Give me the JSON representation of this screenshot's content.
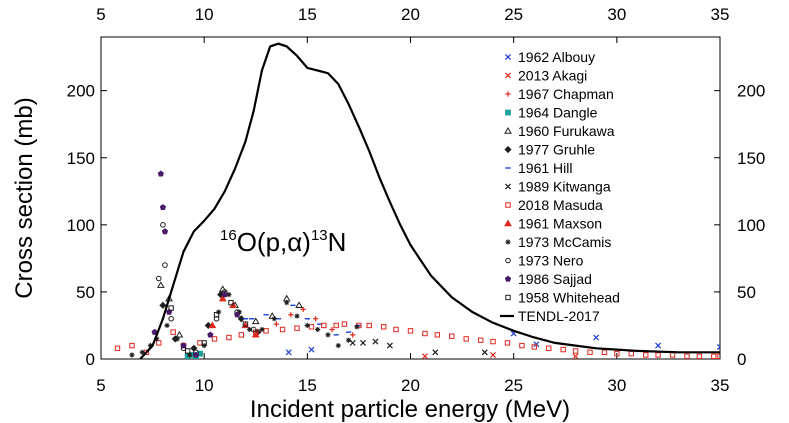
{
  "chart_data": {
    "type": "scatter",
    "title": "",
    "annotation": {
      "mass_a": "16",
      "element_a": "O",
      "reaction": "(p,",
      "alpha": "α",
      "close": ")",
      "mass_b": "13",
      "element_b": "N"
    },
    "xlabel": "Incident particle energy (MeV)",
    "ylabel": "Cross section (mb)",
    "xlim": [
      5,
      35
    ],
    "ylim": [
      0,
      240
    ],
    "xticks": [
      5,
      10,
      15,
      20,
      25,
      30,
      35
    ],
    "xtick_labels": [
      "5",
      "10",
      "15",
      "20",
      "25",
      "30",
      "35"
    ],
    "yticks": [
      0,
      50,
      100,
      150,
      200
    ],
    "ytick_labels": [
      "0",
      "50",
      "100",
      "150",
      "200"
    ],
    "legend_position": "top-right",
    "series": [
      {
        "name": "1962 Albouy",
        "color": "#1f3fd0",
        "marker": "x",
        "points": [
          [
            14.1,
            5
          ],
          [
            15.2,
            7
          ],
          [
            25.0,
            19
          ],
          [
            26.1,
            11
          ],
          [
            29.0,
            16
          ],
          [
            32.0,
            10
          ],
          [
            35.0,
            9
          ]
        ]
      },
      {
        "name": "2013 Akagi",
        "color": "#e0281e",
        "marker": "x",
        "points": [
          [
            20.7,
            2
          ],
          [
            24.0,
            3
          ],
          [
            28.0,
            2
          ]
        ]
      },
      {
        "name": "1967 Chapman",
        "color": "#e0281e",
        "marker": "plus",
        "points": [
          [
            13.5,
            26
          ],
          [
            14.2,
            33
          ],
          [
            14.8,
            37
          ],
          [
            15.4,
            30
          ],
          [
            16.2,
            22
          ],
          [
            17.2,
            18
          ]
        ]
      },
      {
        "name": "1964 Dangle",
        "color": "#1aa39a",
        "marker": "square-filled",
        "points": [
          [
            9.2,
            2
          ],
          [
            9.4,
            3
          ],
          [
            9.6,
            2
          ],
          [
            9.8,
            4
          ]
        ]
      },
      {
        "name": "1960 Furukawa",
        "color": "#1f1f1f",
        "marker": "triangle",
        "points": [
          [
            7.9,
            55
          ],
          [
            8.3,
            45
          ],
          [
            8.8,
            18
          ],
          [
            10.9,
            52
          ],
          [
            11.5,
            40
          ],
          [
            12.5,
            28
          ],
          [
            13.3,
            32
          ],
          [
            14.0,
            45
          ],
          [
            14.6,
            40
          ]
        ]
      },
      {
        "name": "1977 Gruhle",
        "color": "#1f1f1f",
        "marker": "diamond",
        "points": [
          [
            8.0,
            40
          ],
          [
            8.6,
            15
          ],
          [
            9.5,
            8
          ],
          [
            10.2,
            25
          ],
          [
            10.8,
            48
          ],
          [
            11.8,
            30
          ],
          [
            12.6,
            20
          ]
        ]
      },
      {
        "name": "1961 Hill",
        "color": "#1f3fd0",
        "marker": "dash",
        "points": [
          [
            12.0,
            30
          ],
          [
            12.3,
            30
          ],
          [
            13.0,
            33
          ],
          [
            13.6,
            30
          ],
          [
            14.3,
            40
          ],
          [
            15.0,
            30
          ],
          [
            15.6,
            26
          ],
          [
            16.4,
            18
          ],
          [
            17.0,
            20
          ],
          [
            17.5,
            25
          ]
        ]
      },
      {
        "name": "1989 Kitwanga",
        "color": "#1f1f1f",
        "marker": "x",
        "points": [
          [
            17.2,
            12
          ],
          [
            17.7,
            12
          ],
          [
            18.3,
            13
          ],
          [
            19.0,
            10
          ],
          [
            21.2,
            5
          ],
          [
            23.6,
            5
          ]
        ]
      },
      {
        "name": "2018 Masuda",
        "color": "#e0281e",
        "marker": "square",
        "points": [
          [
            5.8,
            8
          ],
          [
            6.5,
            10
          ],
          [
            7.2,
            5
          ],
          [
            7.8,
            12
          ],
          [
            8.5,
            20
          ],
          [
            9.0,
            10
          ],
          [
            9.8,
            12
          ],
          [
            10.5,
            15
          ],
          [
            11.2,
            16
          ],
          [
            11.8,
            18
          ],
          [
            12.5,
            20
          ],
          [
            13.0,
            21
          ],
          [
            13.8,
            22
          ],
          [
            14.5,
            23
          ],
          [
            15.2,
            24
          ],
          [
            15.8,
            25
          ],
          [
            16.4,
            25
          ],
          [
            16.8,
            26
          ],
          [
            17.5,
            25
          ],
          [
            18.0,
            25
          ],
          [
            18.7,
            24
          ],
          [
            19.3,
            22
          ],
          [
            20.0,
            21
          ],
          [
            20.7,
            19
          ],
          [
            21.3,
            18
          ],
          [
            22.0,
            17
          ],
          [
            22.7,
            15
          ],
          [
            23.4,
            14
          ],
          [
            24.0,
            13
          ],
          [
            24.7,
            12
          ],
          [
            25.4,
            10
          ],
          [
            26.0,
            9
          ],
          [
            26.7,
            8
          ],
          [
            27.4,
            7
          ],
          [
            28.0,
            6
          ],
          [
            28.7,
            5
          ],
          [
            29.4,
            5
          ],
          [
            30.0,
            4
          ],
          [
            30.7,
            4
          ],
          [
            31.4,
            3
          ],
          [
            32.0,
            3
          ],
          [
            32.7,
            3
          ],
          [
            33.4,
            2
          ],
          [
            34.0,
            2
          ],
          [
            34.7,
            2
          ],
          [
            35.0,
            2
          ]
        ]
      },
      {
        "name": "1961 Maxson",
        "color": "#e0281e",
        "marker": "triangle-filled",
        "points": [
          [
            10.4,
            25
          ],
          [
            10.9,
            45
          ],
          [
            11.4,
            40
          ],
          [
            12.0,
            25
          ],
          [
            12.5,
            18
          ]
        ]
      },
      {
        "name": "1973 McCamis",
        "color": "#1f1f1f",
        "marker": "star",
        "points": [
          [
            6.5,
            3
          ],
          [
            7.0,
            5
          ],
          [
            7.4,
            10
          ],
          [
            7.7,
            15
          ],
          [
            8.2,
            25
          ],
          [
            8.7,
            15
          ],
          [
            9.3,
            3
          ],
          [
            10.0,
            10
          ],
          [
            10.7,
            35
          ],
          [
            11.2,
            48
          ],
          [
            11.7,
            35
          ],
          [
            12.2,
            22
          ],
          [
            12.8,
            22
          ],
          [
            13.4,
            30
          ],
          [
            14.0,
            42
          ],
          [
            14.5,
            32
          ],
          [
            15.0,
            25
          ],
          [
            15.5,
            22
          ],
          [
            16.0,
            18
          ],
          [
            16.5,
            10
          ],
          [
            17.0,
            14
          ],
          [
            17.4,
            24
          ]
        ]
      },
      {
        "name": "1973 Nero",
        "color": "#1f1f1f",
        "marker": "circle",
        "points": [
          [
            7.8,
            60
          ],
          [
            8.0,
            100
          ],
          [
            8.1,
            70
          ],
          [
            8.4,
            30
          ],
          [
            9.0,
            8
          ],
          [
            9.6,
            5
          ],
          [
            10.6,
            30
          ],
          [
            11.0,
            50
          ],
          [
            11.6,
            35
          ],
          [
            12.4,
            22
          ]
        ]
      },
      {
        "name": "1986 Sajjad",
        "color": "#4a1a6a",
        "marker": "pentagon-filled",
        "points": [
          [
            7.6,
            20
          ],
          [
            7.9,
            138
          ],
          [
            8.0,
            113
          ],
          [
            8.1,
            95
          ],
          [
            8.3,
            35
          ],
          [
            9.0,
            10
          ],
          [
            9.6,
            3
          ],
          [
            10.3,
            18
          ],
          [
            11.0,
            48
          ],
          [
            11.6,
            33
          ]
        ]
      },
      {
        "name": "1958 Whitehead",
        "color": "#1f1f1f",
        "marker": "square",
        "points": [
          [
            8.4,
            38
          ],
          [
            9.2,
            6
          ],
          [
            10.0,
            12
          ],
          [
            10.6,
            33
          ],
          [
            11.3,
            42
          ],
          [
            12.0,
            26
          ]
        ]
      },
      {
        "name": "TENDL-2017",
        "color": "#000000",
        "marker": "line",
        "points": [
          [
            6.9,
            0
          ],
          [
            7.5,
            10
          ],
          [
            8.0,
            30
          ],
          [
            8.5,
            55
          ],
          [
            9.0,
            80
          ],
          [
            9.5,
            95
          ],
          [
            10.0,
            103
          ],
          [
            10.5,
            112
          ],
          [
            11.0,
            125
          ],
          [
            11.5,
            142
          ],
          [
            12.0,
            162
          ],
          [
            12.4,
            185
          ],
          [
            12.8,
            215
          ],
          [
            13.2,
            233
          ],
          [
            13.6,
            235
          ],
          [
            14.0,
            233
          ],
          [
            14.5,
            226
          ],
          [
            15.0,
            217
          ],
          [
            15.5,
            215
          ],
          [
            16.0,
            213
          ],
          [
            16.5,
            205
          ],
          [
            17.0,
            190
          ],
          [
            17.5,
            173
          ],
          [
            18.0,
            155
          ],
          [
            18.5,
            135
          ],
          [
            19.0,
            117
          ],
          [
            19.5,
            100
          ],
          [
            20.0,
            85
          ],
          [
            21.0,
            62
          ],
          [
            22.0,
            46
          ],
          [
            23.0,
            35
          ],
          [
            24.0,
            27
          ],
          [
            25.0,
            21
          ],
          [
            26.0,
            16
          ],
          [
            27.0,
            12
          ],
          [
            28.0,
            10
          ],
          [
            29.0,
            8
          ],
          [
            30.0,
            7
          ],
          [
            31.0,
            6
          ],
          [
            32.0,
            5.5
          ],
          [
            33.0,
            5
          ],
          [
            34.0,
            5
          ],
          [
            35.0,
            5
          ]
        ]
      }
    ]
  }
}
